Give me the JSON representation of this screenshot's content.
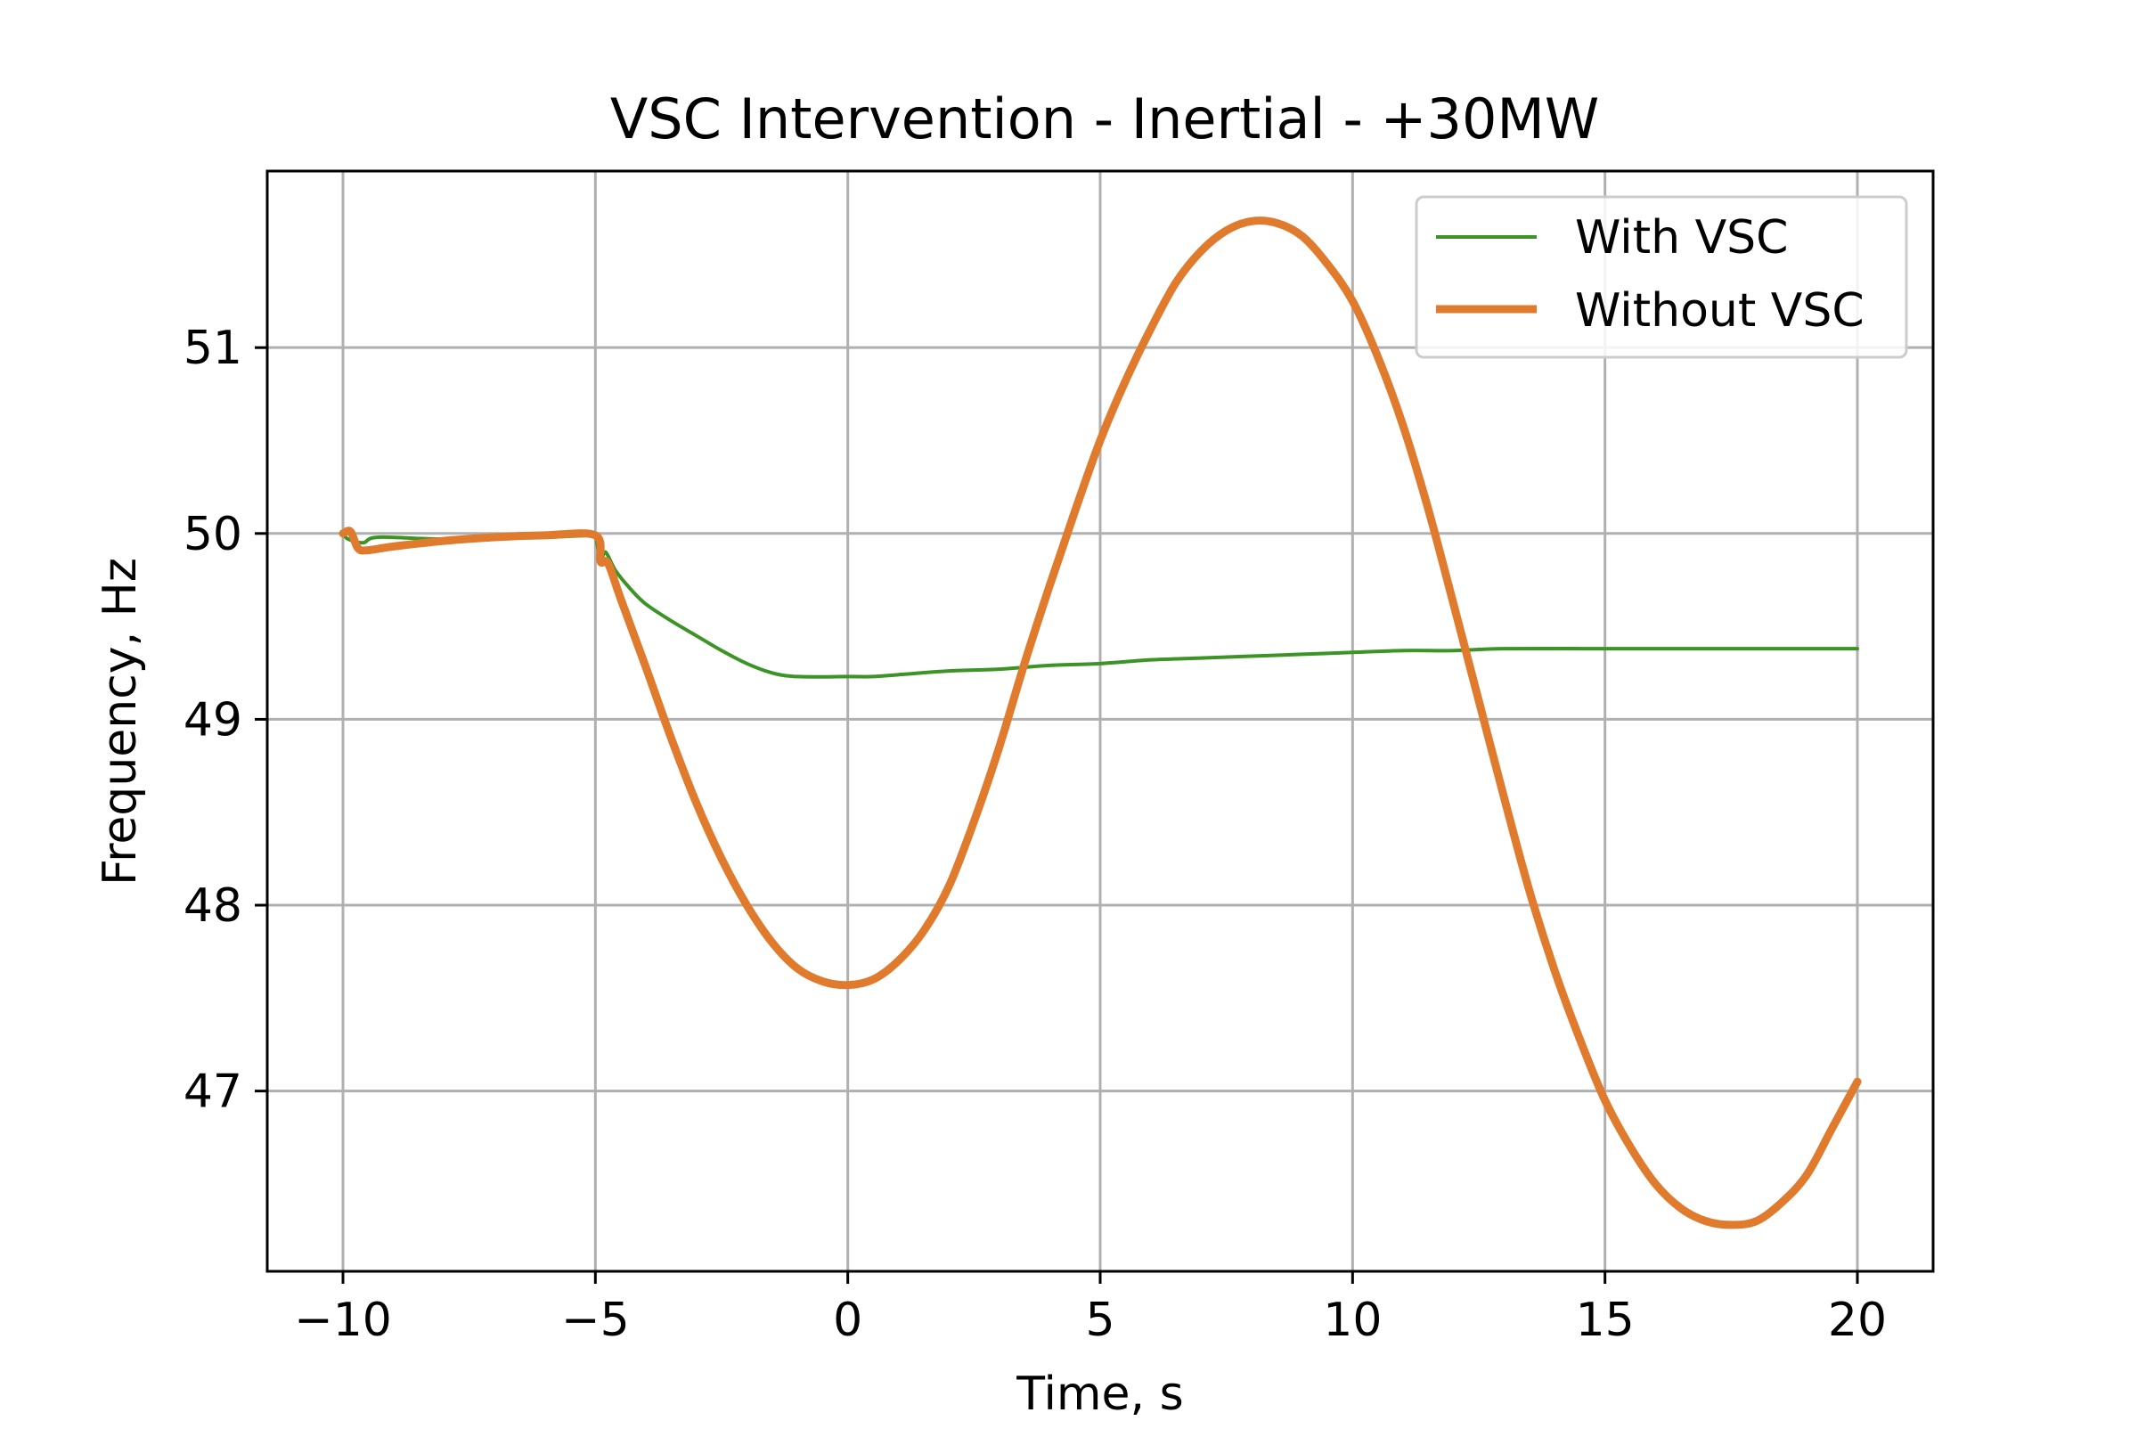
{
  "chart_data": {
    "type": "line",
    "title": "VSC Intervention - Inertial - +30MW",
    "xlabel": "Time, s",
    "ylabel": "Frequency, Hz",
    "xlim": [
      -11.5,
      21.5
    ],
    "ylim": [
      46.03,
      51.95
    ],
    "xticks": [
      -10,
      -5,
      0,
      5,
      10,
      15,
      20
    ],
    "xtick_labels": [
      "−10",
      "−5",
      "0",
      "5",
      "10",
      "15",
      "20"
    ],
    "yticks": [
      47,
      48,
      49,
      50,
      51
    ],
    "ytick_labels": [
      "47",
      "48",
      "49",
      "50",
      "51"
    ],
    "grid": true,
    "legend_position": "top-right",
    "series": [
      {
        "name": "With VSC",
        "color": "#3c9426",
        "style": "thin",
        "points": [
          [
            -10,
            50.0
          ],
          [
            -9.9,
            49.97
          ],
          [
            -9.6,
            49.95
          ],
          [
            -9.3,
            49.98
          ],
          [
            -8,
            49.97
          ],
          [
            -6,
            49.98
          ],
          [
            -5.1,
            49.99
          ],
          [
            -5.0,
            49.99
          ],
          [
            -4.9,
            49.85
          ],
          [
            -4.8,
            49.9
          ],
          [
            -4.6,
            49.8
          ],
          [
            -4.3,
            49.7
          ],
          [
            -4.0,
            49.62
          ],
          [
            -3.5,
            49.53
          ],
          [
            -3.0,
            49.45
          ],
          [
            -2.5,
            49.37
          ],
          [
            -2.0,
            49.3
          ],
          [
            -1.5,
            49.25
          ],
          [
            -1.0,
            49.23
          ],
          [
            0.0,
            49.23
          ],
          [
            0.5,
            49.23
          ],
          [
            1.0,
            49.24
          ],
          [
            2.0,
            49.26
          ],
          [
            3.0,
            49.27
          ],
          [
            4.0,
            49.29
          ],
          [
            5.0,
            49.3
          ],
          [
            6.0,
            49.32
          ],
          [
            7.0,
            49.33
          ],
          [
            8.0,
            49.34
          ],
          [
            9.0,
            49.35
          ],
          [
            10.0,
            49.36
          ],
          [
            11.0,
            49.37
          ],
          [
            12.0,
            49.37
          ],
          [
            13.0,
            49.38
          ],
          [
            15.0,
            49.38
          ],
          [
            17.0,
            49.38
          ],
          [
            20.0,
            49.38
          ]
        ]
      },
      {
        "name": "Without VSC",
        "color": "#e07b2e",
        "style": "thick",
        "points": [
          [
            -10,
            50.0
          ],
          [
            -9.85,
            50.01
          ],
          [
            -9.7,
            49.92
          ],
          [
            -9.5,
            49.91
          ],
          [
            -9.0,
            49.93
          ],
          [
            -8.0,
            49.96
          ],
          [
            -7.0,
            49.98
          ],
          [
            -6.0,
            49.99
          ],
          [
            -5.0,
            49.99
          ],
          [
            -4.9,
            49.85
          ],
          [
            -4.75,
            49.84
          ],
          [
            -4.5,
            49.65
          ],
          [
            -4.0,
            49.28
          ],
          [
            -3.5,
            48.9
          ],
          [
            -3.0,
            48.55
          ],
          [
            -2.5,
            48.25
          ],
          [
            -2.0,
            48.0
          ],
          [
            -1.5,
            47.8
          ],
          [
            -1.0,
            47.66
          ],
          [
            -0.5,
            47.59
          ],
          [
            0.0,
            47.57
          ],
          [
            0.5,
            47.6
          ],
          [
            1.0,
            47.7
          ],
          [
            1.5,
            47.86
          ],
          [
            2.0,
            48.1
          ],
          [
            2.5,
            48.45
          ],
          [
            3.0,
            48.85
          ],
          [
            3.5,
            49.3
          ],
          [
            4.0,
            49.72
          ],
          [
            4.5,
            50.12
          ],
          [
            5.0,
            50.5
          ],
          [
            5.5,
            50.82
          ],
          [
            6.0,
            51.1
          ],
          [
            6.5,
            51.35
          ],
          [
            7.0,
            51.52
          ],
          [
            7.5,
            51.63
          ],
          [
            8.0,
            51.68
          ],
          [
            8.5,
            51.67
          ],
          [
            9.0,
            51.6
          ],
          [
            9.5,
            51.45
          ],
          [
            10.0,
            51.25
          ],
          [
            10.5,
            50.95
          ],
          [
            11.0,
            50.58
          ],
          [
            11.5,
            50.13
          ],
          [
            12.0,
            49.62
          ],
          [
            12.5,
            49.1
          ],
          [
            13.0,
            48.58
          ],
          [
            13.5,
            48.08
          ],
          [
            14.0,
            47.65
          ],
          [
            14.5,
            47.28
          ],
          [
            15.0,
            46.95
          ],
          [
            15.5,
            46.7
          ],
          [
            16.0,
            46.5
          ],
          [
            16.5,
            46.37
          ],
          [
            17.0,
            46.3
          ],
          [
            17.5,
            46.28
          ],
          [
            18.0,
            46.3
          ],
          [
            18.5,
            46.4
          ],
          [
            19.0,
            46.55
          ],
          [
            19.5,
            46.8
          ],
          [
            20.0,
            47.05
          ]
        ]
      }
    ]
  }
}
